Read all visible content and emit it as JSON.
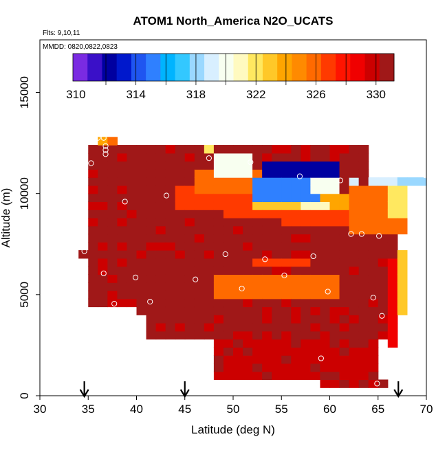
{
  "chart_data": {
    "type": "heatmap",
    "title": "ATOM1 North_America N2O_UCATS",
    "flights_label": "Flts: 9,10,11",
    "mmdd_label": "MMDD: 0820,0822,0823",
    "xlabel": "Latitude (deg N)",
    "ylabel": "Altitude (m)",
    "xlim": [
      30,
      70
    ],
    "ylim": [
      0,
      17600
    ],
    "x_ticks": [
      "30",
      "35",
      "40",
      "45",
      "50",
      "55",
      "60",
      "65",
      "70"
    ],
    "y_ticks": [
      "0",
      "5000",
      "10000",
      "15000"
    ],
    "colorbar": {
      "min": 309.8,
      "max": 331.2,
      "tick_labels": [
        "310",
        "314",
        "318",
        "322",
        "326",
        "330"
      ],
      "colors": [
        "#7a2be2",
        "#3a10c8",
        "#0000a0",
        "#0018cc",
        "#1f55f0",
        "#2f80ff",
        "#00b4ff",
        "#33c8ff",
        "#9ad8ff",
        "#d8efff",
        "#f8fff0",
        "#fffac0",
        "#ffe860",
        "#ffc828",
        "#ffa500",
        "#ff8a00",
        "#ff6a00",
        "#ff3a00",
        "#ff1400",
        "#f00000",
        "#cc0000",
        "#a01818"
      ]
    },
    "cell_size_deg": 1,
    "cell_size_m": 400,
    "base_value": 330.5,
    "regions": [
      {
        "lat": [
          33.8,
          34.8
        ],
        "alt": [
          7000,
          7400
        ],
        "value": 330.5
      },
      {
        "lat": [
          34.8,
          66.0
        ],
        "alt": [
          4600,
          8600
        ],
        "value": 330.5
      },
      {
        "lat": [
          34.8,
          64.0
        ],
        "alt": [
          8600,
          12600
        ],
        "value": 330.5
      },
      {
        "lat": [
          41.0,
          66.0
        ],
        "alt": [
          3000,
          4600
        ],
        "value": 330.4
      },
      {
        "lat": [
          48.0,
          65.0
        ],
        "alt": [
          1000,
          3000
        ],
        "value": 330.0
      },
      {
        "lat": [
          59.0,
          66.0
        ],
        "alt": [
          400,
          1000
        ],
        "value": 330.0
      },
      {
        "lat": [
          65.0,
          67.0
        ],
        "alt": [
          7000,
          8600
        ],
        "value": 330.8
      },
      {
        "lat": [
          66.0,
          67.0
        ],
        "alt": [
          2400,
          7000
        ],
        "value": 328.8
      },
      {
        "lat": [
          67.0,
          68.0
        ],
        "alt": [
          4000,
          7400
        ],
        "value": 323.0
      },
      {
        "lat": [
          62.0,
          68.0
        ],
        "alt": [
          8000,
          10400
        ],
        "value": 326.0
      },
      {
        "lat": [
          64.0,
          67.0
        ],
        "alt": [
          10400,
          10800
        ],
        "value": 319.0
      },
      {
        "lat": [
          67.0,
          70.0
        ],
        "alt": [
          10400,
          10800
        ],
        "value": 317.6
      },
      {
        "lat": [
          66.0,
          68.0
        ],
        "alt": [
          8800,
          10400
        ],
        "value": 322.0
      },
      {
        "lat": [
          40.0,
          51.0
        ],
        "alt": [
          4000,
          5600
        ],
        "value": 331.2
      },
      {
        "lat": [
          48.0,
          61.0
        ],
        "alt": [
          5000,
          6000
        ],
        "value": 326.0
      },
      {
        "lat": [
          50.0,
          60.0
        ],
        "alt": [
          5200,
          5600
        ],
        "value": 325.6
      },
      {
        "lat": [
          52.0,
          58.0
        ],
        "alt": [
          6400,
          6800
        ],
        "value": 327.2
      },
      {
        "lat": [
          44.0,
          52.0
        ],
        "alt": [
          9200,
          10400
        ],
        "value": 327.2
      },
      {
        "lat": [
          46.0,
          53.0
        ],
        "alt": [
          10000,
          11200
        ],
        "value": 326.0
      },
      {
        "lat": [
          49.0,
          57.0
        ],
        "alt": [
          8800,
          9600
        ],
        "value": 326.4
      },
      {
        "lat": [
          52.0,
          58.0
        ],
        "alt": [
          9200,
          10000
        ],
        "value": 322.8
      },
      {
        "lat": [
          48.0,
          52.0
        ],
        "alt": [
          10800,
          12000
        ],
        "value": 320.0
      },
      {
        "lat": [
          52.0,
          61.0
        ],
        "alt": [
          9600,
          10800
        ],
        "value": 314.8
      },
      {
        "lat": [
          53.0,
          61.0
        ],
        "alt": [
          10800,
          11600
        ],
        "value": 312.4
      },
      {
        "lat": [
          58.0,
          61.0
        ],
        "alt": [
          10000,
          10800
        ],
        "value": 319.6
      },
      {
        "lat": [
          59.0,
          62.0
        ],
        "alt": [
          9000,
          10000
        ],
        "value": 323.6
      },
      {
        "lat": [
          55.0,
          62.0
        ],
        "alt": [
          8600,
          9200
        ],
        "value": 327.2
      },
      {
        "lat": [
          36.0,
          37.0
        ],
        "alt": [
          12600,
          13000
        ],
        "value": 324.0
      },
      {
        "lat": [
          37.0,
          38.0
        ],
        "alt": [
          12600,
          13000
        ],
        "value": 325.6
      },
      {
        "lat": [
          47.0,
          48.0
        ],
        "alt": [
          12000,
          12600
        ],
        "value": 322.4
      },
      {
        "lat": [
          57.0,
          60.0
        ],
        "alt": [
          9200,
          9600
        ],
        "value": 320.8
      },
      {
        "lat": [
          62.0,
          63.0
        ],
        "alt": [
          10400,
          10800
        ],
        "value": 318.8
      }
    ],
    "sample_points": [
      {
        "lat": 36.0,
        "alt": 12750
      },
      {
        "lat": 36.6,
        "alt": 12750
      },
      {
        "lat": 36.8,
        "alt": 12350
      },
      {
        "lat": 36.8,
        "alt": 12150
      },
      {
        "lat": 36.8,
        "alt": 11950
      },
      {
        "lat": 35.3,
        "alt": 11500
      },
      {
        "lat": 47.5,
        "alt": 11750
      },
      {
        "lat": 51.8,
        "alt": 11550
      },
      {
        "lat": 56.9,
        "alt": 10850
      },
      {
        "lat": 61.1,
        "alt": 10650
      },
      {
        "lat": 69.9,
        "alt": 10900
      },
      {
        "lat": 43.1,
        "alt": 9900
      },
      {
        "lat": 38.8,
        "alt": 9600
      },
      {
        "lat": 62.2,
        "alt": 8000
      },
      {
        "lat": 63.3,
        "alt": 8000
      },
      {
        "lat": 65.1,
        "alt": 7900
      },
      {
        "lat": 34.6,
        "alt": 7150
      },
      {
        "lat": 49.2,
        "alt": 7000
      },
      {
        "lat": 53.3,
        "alt": 6750
      },
      {
        "lat": 58.3,
        "alt": 6900
      },
      {
        "lat": 36.6,
        "alt": 6050
      },
      {
        "lat": 39.9,
        "alt": 5850
      },
      {
        "lat": 46.1,
        "alt": 5750
      },
      {
        "lat": 55.3,
        "alt": 5950
      },
      {
        "lat": 50.9,
        "alt": 5300
      },
      {
        "lat": 59.8,
        "alt": 5150
      },
      {
        "lat": 64.5,
        "alt": 4850
      },
      {
        "lat": 41.4,
        "alt": 4650
      },
      {
        "lat": 37.7,
        "alt": 4550
      },
      {
        "lat": 65.4,
        "alt": 3950
      },
      {
        "lat": 59.1,
        "alt": 1850
      },
      {
        "lat": 64.9,
        "alt": 600
      }
    ],
    "arrows_lat": [
      34.6,
      45.0,
      67.1
    ]
  }
}
